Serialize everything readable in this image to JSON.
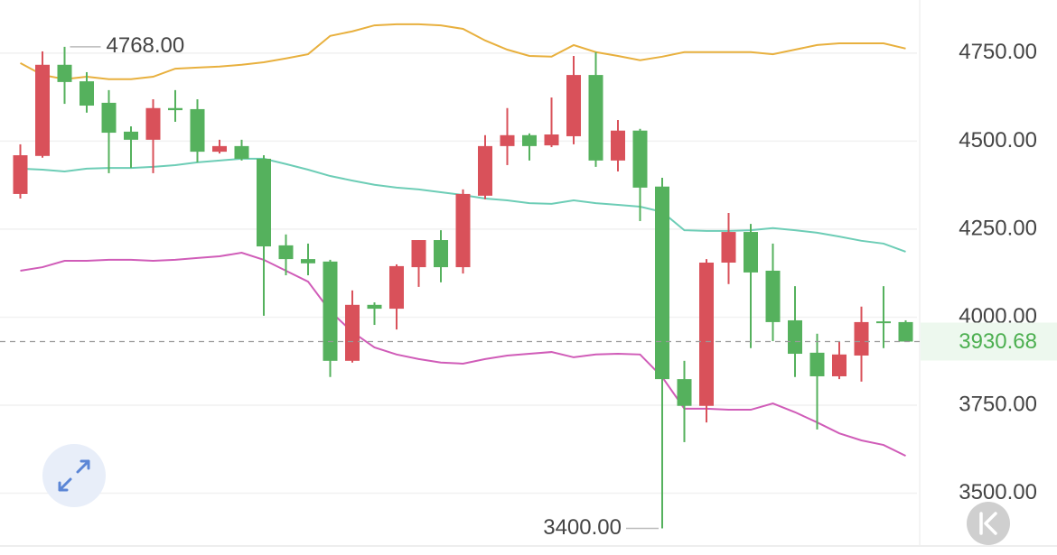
{
  "chart_data": {
    "type": "candlestick",
    "ylim": [
      3350,
      4901
    ],
    "yticks": [
      {
        "value": 3500,
        "label": "3500.00"
      },
      {
        "value": 3750,
        "label": "3750.00"
      },
      {
        "value": 4000,
        "label": "4000.00"
      },
      {
        "value": 4250,
        "label": "4250.00"
      },
      {
        "value": 4500,
        "label": "4500.00"
      },
      {
        "value": 4750,
        "label": "4750.00"
      }
    ],
    "grid": true,
    "up_color": "#d9515a",
    "down_color": "#55b15d",
    "open": [
      4350,
      4458,
      4717,
      4670,
      4609,
      4527,
      4504,
      4594,
      4591,
      4470,
      4486,
      4450,
      4204,
      4165,
      4158,
      3876,
      4035,
      4024,
      4142,
      4219,
      4142,
      4345,
      4486,
      4517,
      4488,
      4514,
      4688,
      4445,
      4530,
      4371,
      3824,
      3748,
      4155,
      4242,
      4132,
      3991,
      3899,
      3832,
      3891,
      3988,
      3986
    ],
    "high": [
      4491,
      4755,
      4768,
      4696,
      4645,
      4542,
      4619,
      4645,
      4619,
      4504,
      4504,
      4460,
      4235,
      4209,
      4163,
      4076,
      4042,
      4150,
      4219,
      4247,
      4363,
      4517,
      4594,
      4522,
      4624,
      4742,
      4753,
      4560,
      4535,
      4396,
      3876,
      4165,
      4296,
      4265,
      4209,
      4088,
      3953,
      3932,
      4030,
      4088,
      3991
    ],
    "low": [
      4337,
      4453,
      4606,
      4581,
      4409,
      4424,
      4409,
      4555,
      4440,
      4465,
      4445,
      4004,
      4119,
      4119,
      3830,
      3871,
      3978,
      3965,
      4086,
      4099,
      4124,
      4335,
      4432,
      4445,
      4483,
      4491,
      4427,
      4414,
      4273,
      3400,
      3645,
      3701,
      4094,
      3912,
      3932,
      3830,
      3681,
      3824,
      3817,
      3912,
      3935
    ],
    "close": [
      4460,
      4717,
      4668,
      4601,
      4524,
      4504,
      4594,
      4588,
      4470,
      4486,
      4450,
      4201,
      4165,
      4153,
      3876,
      4035,
      4024,
      4145,
      4219,
      4142,
      4350,
      4486,
      4517,
      4486,
      4519,
      4688,
      4445,
      4530,
      4368,
      3824,
      3748,
      4155,
      4242,
      4127,
      3986,
      3896,
      3832,
      3894,
      3986,
      3983,
      3930.68
    ],
    "bands": [
      {
        "color": "#e8b03e",
        "values": [
          4722,
          4688,
          4676,
          4683,
          4676,
          4676,
          4683,
          4706,
          4709,
          4712,
          4717,
          4724,
          4735,
          4747,
          4799,
          4812,
          4829,
          4832,
          4832,
          4829,
          4819,
          4786,
          4760,
          4742,
          4740,
          4773,
          4753,
          4742,
          4730,
          4740,
          4753,
          4753,
          4753,
          4753,
          4747,
          4760,
          4773,
          4778,
          4778,
          4778,
          4763
        ]
      },
      {
        "color": "#6dcdb6",
        "values": [
          4422,
          4419,
          4414,
          4422,
          4424,
          4424,
          4427,
          4432,
          4440,
          4445,
          4450,
          4450,
          4435,
          4419,
          4401,
          4388,
          4376,
          4368,
          4363,
          4355,
          4347,
          4337,
          4332,
          4324,
          4322,
          4332,
          4324,
          4319,
          4314,
          4299,
          4247,
          4245,
          4245,
          4247,
          4253,
          4247,
          4240,
          4229,
          4217,
          4209,
          4186
        ]
      },
      {
        "color": "#d05cb8",
        "values": [
          4132,
          4142,
          4160,
          4160,
          4163,
          4163,
          4160,
          4163,
          4168,
          4173,
          4183,
          4163,
          4132,
          4101,
          4017,
          3958,
          3914,
          3894,
          3881,
          3871,
          3868,
          3881,
          3891,
          3896,
          3901,
          3886,
          3894,
          3896,
          3894,
          3830,
          3740,
          3740,
          3737,
          3737,
          3755,
          3730,
          3701,
          3670,
          3650,
          3637,
          3606
        ]
      }
    ],
    "high_label": {
      "value": 4768,
      "label": "4768.00"
    },
    "low_label": {
      "value": 3400,
      "label": "3400.00"
    },
    "last_price": {
      "value": 3930.68,
      "label": "3930.68"
    },
    "last_price_color": "#4caf50"
  }
}
